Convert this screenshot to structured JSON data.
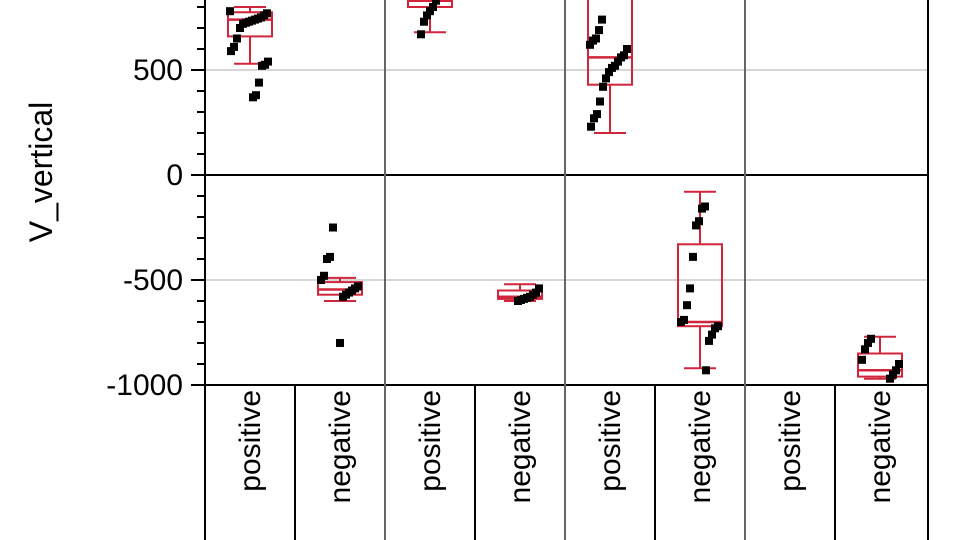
{
  "chart_data": {
    "type": "box",
    "ylabel": "V_vertical",
    "ylim": [
      -1000,
      850
    ],
    "y_ticks": [
      500,
      0,
      -500,
      -1000
    ],
    "y_tick_labels": [
      "500",
      "0",
      "-500",
      "-1000"
    ],
    "grid": true,
    "categories": [
      "positive",
      "negative",
      "positive",
      "negative",
      "positive",
      "negative",
      "positive",
      "negative"
    ],
    "series": [
      {
        "box": {
          "min": 530,
          "q1": 660,
          "median": 740,
          "q3": 775,
          "max": 800
        },
        "points": [
          780,
          770,
          760,
          750,
          745,
          740,
          735,
          730,
          725,
          720,
          700,
          650,
          610,
          590,
          540,
          525,
          520,
          440,
          380,
          370
        ]
      },
      {
        "box": {
          "min": -600,
          "q1": -570,
          "median": -545,
          "q3": -510,
          "max": -490
        },
        "points": [
          -250,
          -390,
          -400,
          -480,
          -500,
          -530,
          -540,
          -550,
          -560,
          -570,
          -580,
          -800
        ]
      },
      {
        "box": {
          "min": 680,
          "q1": 800,
          "median": 830,
          "q3": 840,
          "max": 850
        },
        "points": [
          830,
          800,
          780,
          760,
          730,
          670
        ]
      },
      {
        "box": {
          "min": -600,
          "q1": -590,
          "median": -580,
          "q3": -550,
          "max": -520
        },
        "points": [
          -540,
          -560,
          -570,
          -580,
          -585,
          -590,
          -595,
          -600
        ]
      },
      {
        "box": {
          "min": 200,
          "q1": 430,
          "median": 560,
          "q3": 840,
          "max": 850
        },
        "points": [
          740,
          690,
          650,
          640,
          620,
          600,
          570,
          560,
          540,
          520,
          510,
          490,
          460,
          420,
          350,
          290,
          270,
          230
        ]
      },
      {
        "box": {
          "min": -920,
          "q1": -720,
          "median": -700,
          "q3": -330,
          "max": -80
        },
        "points": [
          -150,
          -160,
          -220,
          -240,
          -390,
          -540,
          -620,
          -690,
          -700,
          -720,
          -730,
          -760,
          -790,
          -930
        ]
      },
      {
        "box": null,
        "points": []
      },
      {
        "box": {
          "min": -970,
          "q1": -960,
          "median": -930,
          "q3": -850,
          "max": -770
        },
        "points": [
          -780,
          -800,
          -830,
          -880,
          -900,
          -930,
          -950,
          -970
        ]
      }
    ]
  }
}
